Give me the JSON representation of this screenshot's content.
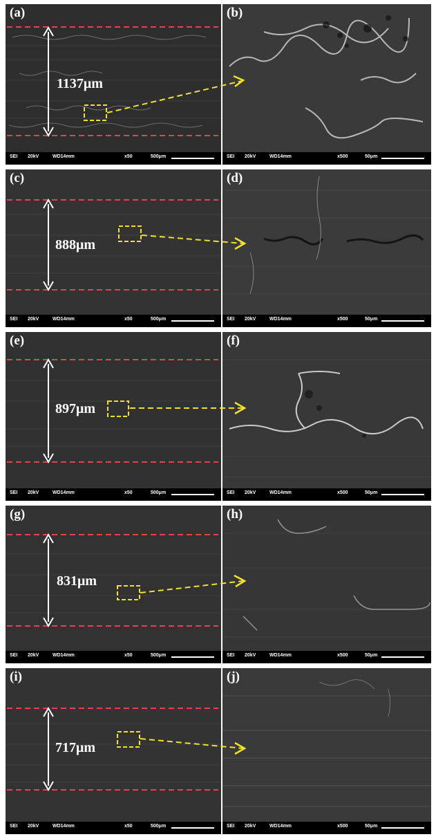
{
  "figure": {
    "rows": [
      {
        "left": {
          "label": "(a)",
          "measurement": "1137μm",
          "signal": "SEI",
          "voltage": "20kV",
          "wd": "WD14mm",
          "mag": "x50",
          "scale": "500μm"
        },
        "right": {
          "label": "(b)",
          "signal": "SEI",
          "voltage": "20kV",
          "wd": "WD14mm",
          "mag": "x500",
          "scale": "50μm"
        }
      },
      {
        "left": {
          "label": "(c)",
          "measurement": "888μm",
          "signal": "SEI",
          "voltage": "20kV",
          "wd": "WD14mm",
          "mag": "x50",
          "scale": "500μm"
        },
        "right": {
          "label": "(d)",
          "signal": "SEI",
          "voltage": "20kV",
          "wd": "WD14mm",
          "mag": "x500",
          "scale": "50μm"
        }
      },
      {
        "left": {
          "label": "(e)",
          "measurement": "897μm",
          "signal": "SEI",
          "voltage": "20kV",
          "wd": "WD14mm",
          "mag": "x50",
          "scale": "500μm"
        },
        "right": {
          "label": "(f)",
          "signal": "SEI",
          "voltage": "20kV",
          "wd": "WD14mm",
          "mag": "x500",
          "scale": "50μm"
        }
      },
      {
        "left": {
          "label": "(g)",
          "measurement": "831μm",
          "signal": "SEI",
          "voltage": "20kV",
          "wd": "WD14mm",
          "mag": "x50",
          "scale": "500μm"
        },
        "right": {
          "label": "(h)",
          "signal": "SEI",
          "voltage": "20kV",
          "wd": "WD14mm",
          "mag": "x500",
          "scale": "50μm"
        }
      },
      {
        "left": {
          "label": "(i)",
          "measurement": "717μm",
          "signal": "SEI",
          "voltage": "20kV",
          "wd": "WD14mm",
          "mag": "x50",
          "scale": "500μm"
        },
        "right": {
          "label": "(j)",
          "signal": "SEI",
          "voltage": "20kV",
          "wd": "WD14mm",
          "mag": "x500",
          "scale": "50μm"
        }
      }
    ],
    "colors": {
      "boundary_line": "#e8434a",
      "callout": "#f2e22c",
      "measure_arrow": "#ffffff",
      "sem_background": "#2f2f2f",
      "info_bar": "#000000"
    }
  }
}
